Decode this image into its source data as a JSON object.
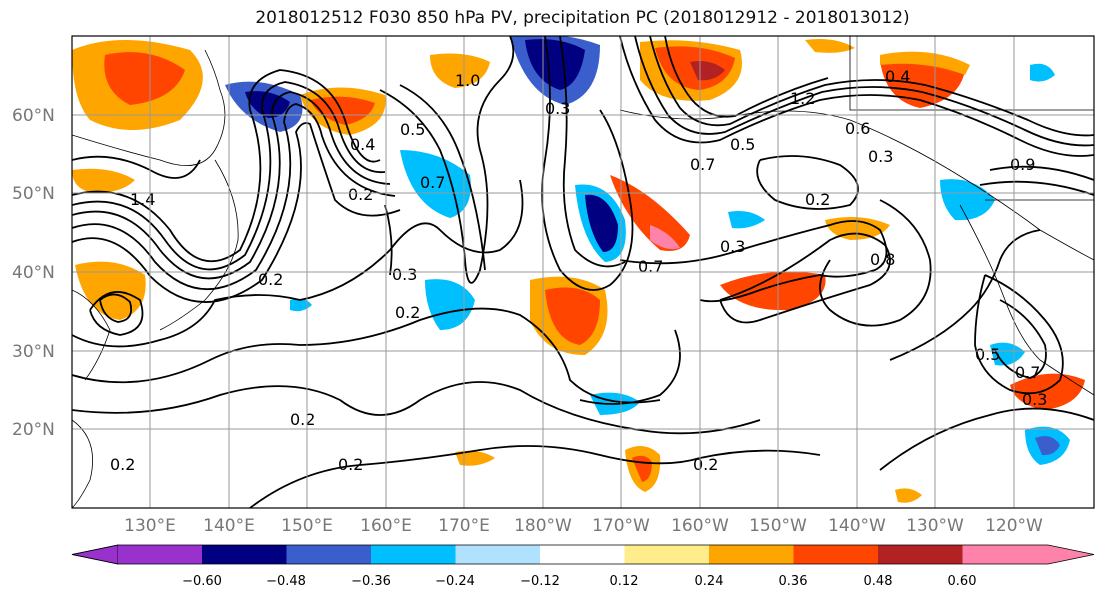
{
  "title": "2018012512 F030 850 hPa PV, precipitation PC (2018012912 - 2018013012)",
  "map": {
    "lat_labels": [
      "60°N",
      "50°N",
      "40°N",
      "30°N",
      "20°N"
    ],
    "lon_labels": [
      "130°E",
      "140°E",
      "150°E",
      "160°E",
      "170°E",
      "180°W",
      "170°W",
      "160°W",
      "150°W",
      "140°W",
      "130°W",
      "120°W"
    ],
    "contour_labels": [
      "1.0",
      "0.3",
      "0.2",
      "0.4",
      "0.7",
      "0.5",
      "0.2",
      "0.3",
      "0.6",
      "1.2",
      "0.7",
      "0.5",
      "0.3",
      "0.2",
      "0.3",
      "0.7",
      "0.8",
      "0.2",
      "0.2",
      "0.2",
      "0.2",
      "0.5",
      "0.7",
      "0.3",
      "0.2",
      "1.4",
      "0.4",
      "0.9"
    ]
  },
  "colorbar": {
    "ticks": [
      "−0.60",
      "−0.48",
      "−0.36",
      "−0.24",
      "−0.12",
      "0.12",
      "0.24",
      "0.36",
      "0.48",
      "0.60"
    ],
    "colors": [
      "#9932cc",
      "#000080",
      "#3a5fcd",
      "#00bfff",
      "#b0e2ff",
      "#ffffff",
      "#ffec8b",
      "#ffa500",
      "#ff4500",
      "#b22222",
      "#ff82ab"
    ]
  }
}
